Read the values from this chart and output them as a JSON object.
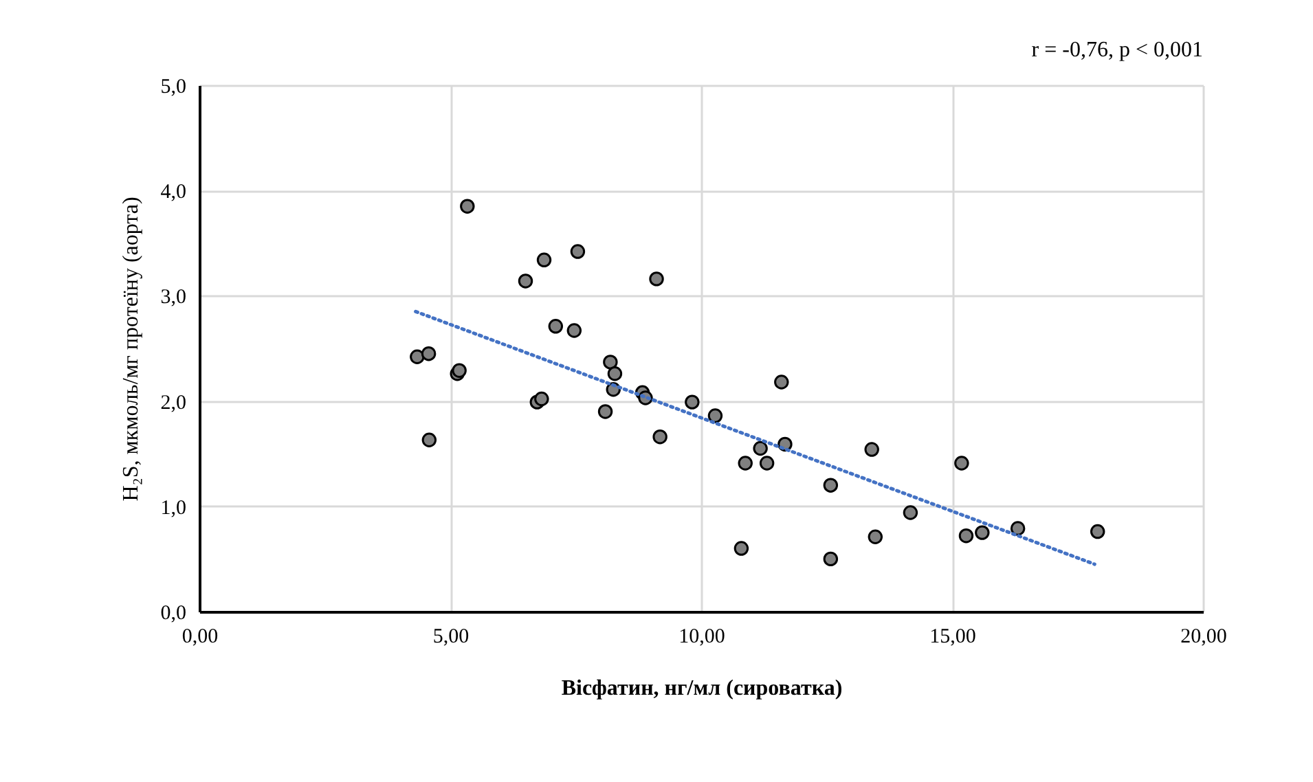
{
  "chart_data": {
    "type": "scatter",
    "xlabel": "Вісфатин, нг/мл (сироватка)",
    "ylabel": "H₂S, мкмоль/мг протеїну (аорта)",
    "annotations": [
      "r = -0,76, p < 0,001"
    ],
    "xlim": [
      0,
      20
    ],
    "xticks": [
      {
        "value": 0,
        "label": "0,00"
      },
      {
        "value": 5,
        "label": "5,00"
      },
      {
        "value": 10,
        "label": "10,00"
      },
      {
        "value": 15,
        "label": "15,00"
      },
      {
        "value": 20,
        "label": "20,00"
      }
    ],
    "ylim": [
      0,
      5
    ],
    "yticks": [
      {
        "value": 0,
        "label": "0,0"
      },
      {
        "value": 1,
        "label": "1,0"
      },
      {
        "value": 2,
        "label": "2,0"
      },
      {
        "value": 3,
        "label": "3,0"
      },
      {
        "value": 4,
        "label": "4,0"
      },
      {
        "value": 5,
        "label": "5,0"
      }
    ],
    "grid": true,
    "series": [
      {
        "marker": "circle",
        "color": "#808080",
        "x": [
          5.34,
          6.87,
          6.5,
          4.34,
          4.57,
          5.14,
          5.18,
          6.73,
          6.82,
          4.58,
          7.54,
          9.11,
          7.1,
          7.47,
          8.19,
          8.28,
          8.25,
          8.09,
          8.83,
          8.89,
          9.18,
          9.82,
          10.28,
          11.6,
          11.18,
          11.67,
          10.88,
          11.31,
          12.58,
          13.4,
          10.8,
          12.58,
          13.47,
          14.17,
          15.19,
          15.28,
          15.6,
          16.31,
          17.9
        ],
        "values": [
          3.85,
          3.34,
          3.14,
          2.42,
          2.45,
          2.26,
          2.29,
          1.99,
          2.02,
          1.63,
          3.42,
          3.16,
          2.71,
          2.67,
          2.37,
          2.26,
          2.11,
          1.9,
          2.08,
          2.03,
          1.66,
          1.99,
          1.86,
          2.18,
          1.55,
          1.59,
          1.41,
          1.41,
          1.2,
          1.54,
          0.6,
          0.5,
          0.71,
          0.94,
          1.41,
          0.72,
          0.75,
          0.79,
          0.76
        ]
      },
      {
        "type": "line",
        "color": "#4472c4",
        "line_style": "dotted",
        "x": [
          4.31,
          17.84
        ],
        "values": [
          2.85,
          0.45
        ]
      }
    ]
  }
}
